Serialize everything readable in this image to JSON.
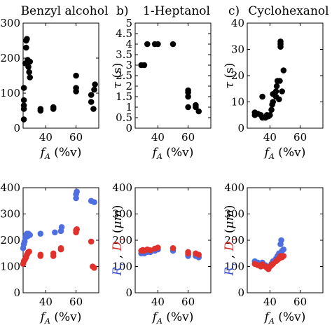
{
  "chart_data": [
    {
      "type": "scatter",
      "title": "Benzyl alcohol",
      "panel_letter": "",
      "xlabel": "f_A (%v)",
      "ylabel": "",
      "xlim": [
        25,
        75
      ],
      "ylim": [
        0,
        300
      ],
      "xticks": [
        40,
        60
      ],
      "yticks": [
        0,
        100,
        200,
        300
      ],
      "series": [
        {
          "color": "#000000",
          "points": [
            [
              25.5,
              25
            ],
            [
              25.5,
              55
            ],
            [
              25.5,
              65
            ],
            [
              25.5,
              80
            ],
            [
              25.5,
              115
            ],
            [
              26.5,
              185
            ],
            [
              27,
              230
            ],
            [
              27,
              250
            ],
            [
              27.5,
              255
            ],
            [
              28,
              195
            ],
            [
              28.5,
              175
            ],
            [
              29,
              160
            ],
            [
              29.5,
              145
            ],
            [
              29.5,
              190
            ],
            [
              36.5,
              50
            ],
            [
              36.5,
              55
            ],
            [
              45,
              55
            ],
            [
              45,
              60
            ],
            [
              60,
              105
            ],
            [
              60,
              115
            ],
            [
              60,
              150
            ],
            [
              70,
              75
            ],
            [
              70,
              95
            ],
            [
              71.5,
              55
            ],
            [
              72,
              110
            ],
            [
              72.5,
              125
            ]
          ]
        }
      ]
    },
    {
      "type": "scatter",
      "title": "1-Heptanol",
      "panel_letter": "b)",
      "xlabel": "f_A (%v)",
      "ylabel": "τ (s)",
      "xlim": [
        25,
        75
      ],
      "ylim": [
        0,
        5
      ],
      "xticks": [
        40,
        60
      ],
      "yticks": [
        0,
        0.5,
        1,
        1.5,
        2,
        2.5,
        3,
        3.5,
        4,
        4.5,
        5
      ],
      "series": [
        {
          "color": "#000000",
          "points": [
            [
              29,
              3
            ],
            [
              31,
              3
            ],
            [
              33,
              4
            ],
            [
              38,
              4
            ],
            [
              40,
              4
            ],
            [
              50,
              4
            ],
            [
              60,
              1
            ],
            [
              60,
              1.5
            ],
            [
              60,
              1.7
            ],
            [
              60,
              1.8
            ],
            [
              65,
              1
            ],
            [
              65,
              1.1
            ],
            [
              67,
              0.8
            ]
          ]
        }
      ]
    },
    {
      "type": "scatter",
      "title": "Cyclohexanol",
      "panel_letter": "c)",
      "xlabel": "f_A (%v)",
      "ylabel": "τ (s)",
      "xlim": [
        25,
        75
      ],
      "ylim": [
        0,
        40
      ],
      "xticks": [
        40,
        60
      ],
      "yticks": [
        0,
        10,
        20,
        30,
        40
      ],
      "series": [
        {
          "color": "#000000",
          "points": [
            [
              30,
              5
            ],
            [
              30,
              6
            ],
            [
              32,
              5.5
            ],
            [
              34,
              5
            ],
            [
              35,
              4
            ],
            [
              35,
              12
            ],
            [
              37,
              4
            ],
            [
              38,
              5
            ],
            [
              39,
              4.5
            ],
            [
              40,
              5
            ],
            [
              41,
              7
            ],
            [
              41.5,
              9
            ],
            [
              42,
              10
            ],
            [
              42,
              13
            ],
            [
              44,
              12
            ],
            [
              44,
              14
            ],
            [
              44.5,
              16
            ],
            [
              45,
              18
            ],
            [
              46,
              11
            ],
            [
              46.5,
              18
            ],
            [
              47,
              31
            ],
            [
              47,
              32
            ],
            [
              47,
              33
            ],
            [
              48,
              14
            ],
            [
              49,
              22
            ]
          ]
        }
      ]
    },
    {
      "type": "scatter",
      "title": "",
      "panel_letter": "",
      "xlabel": "f_A (%v)",
      "ylabel": "",
      "xlim": [
        25,
        75
      ],
      "ylim": [
        0,
        400
      ],
      "xticks": [
        40,
        60
      ],
      "yticks": [
        0,
        100,
        200,
        300,
        400
      ],
      "series": [
        {
          "color": "#4f6ee0",
          "points": [
            [
              25,
              170
            ],
            [
              25.5,
              185
            ],
            [
              26,
              195
            ],
            [
              26.5,
              210
            ],
            [
              27,
              220
            ],
            [
              27.5,
              225
            ],
            [
              28,
              215
            ],
            [
              28.5,
              225
            ],
            [
              29,
              222
            ],
            [
              29.5,
              220
            ],
            [
              36.5,
              225
            ],
            [
              46,
              230
            ],
            [
              50,
              235
            ],
            [
              50.5,
              250
            ],
            [
              60,
              360
            ],
            [
              60,
              375
            ],
            [
              60.5,
              385
            ],
            [
              70,
              350
            ],
            [
              72,
              345
            ]
          ]
        },
        {
          "color": "#e0312c",
          "points": [
            [
              25,
              110
            ],
            [
              25.5,
              120
            ],
            [
              26,
              125
            ],
            [
              26.5,
              130
            ],
            [
              27,
              135
            ],
            [
              27.5,
              145
            ],
            [
              28,
              150
            ],
            [
              28.5,
              155
            ],
            [
              29,
              157
            ],
            [
              36.5,
              140
            ],
            [
              36.5,
              145
            ],
            [
              45,
              140
            ],
            [
              45,
              150
            ],
            [
              50,
              165
            ],
            [
              50,
              170
            ],
            [
              60,
              230
            ],
            [
              60,
              238
            ],
            [
              60.5,
              242
            ],
            [
              70,
              195
            ],
            [
              71,
              100
            ],
            [
              72,
              95
            ]
          ]
        }
      ]
    },
    {
      "type": "scatter",
      "title": "",
      "panel_letter": "",
      "xlabel": "f_A (%v)",
      "ylabel": "R_τ , D_τ (μm)",
      "xlim": [
        25,
        75
      ],
      "ylim": [
        0,
        400
      ],
      "xticks": [
        40,
        60
      ],
      "yticks": [
        0,
        100,
        200,
        300,
        400
      ],
      "series": [
        {
          "color": "#4f6ee0",
          "points": [
            [
              29,
              150
            ],
            [
              30,
              152
            ],
            [
              31,
              150
            ],
            [
              33,
              155
            ],
            [
              35,
              155
            ],
            [
              38,
              160
            ],
            [
              40,
              165
            ],
            [
              50,
              160
            ],
            [
              60,
              140
            ],
            [
              60,
              145
            ],
            [
              65,
              140
            ],
            [
              67,
              135
            ]
          ]
        },
        {
          "color": "#e0312c",
          "points": [
            [
              29,
              160
            ],
            [
              30,
              163
            ],
            [
              31,
              160
            ],
            [
              33,
              165
            ],
            [
              35,
              162
            ],
            [
              38,
              168
            ],
            [
              40,
              172
            ],
            [
              50,
              170
            ],
            [
              60,
              150
            ],
            [
              60,
              155
            ],
            [
              65,
              150
            ],
            [
              67,
              145
            ]
          ]
        }
      ]
    },
    {
      "type": "scatter",
      "title": "",
      "panel_letter": "",
      "xlabel": "f_A (%v)",
      "ylabel": "R_τ , D_τ (μm)",
      "xlim": [
        25,
        75
      ],
      "ylim": [
        0,
        400
      ],
      "xticks": [
        40,
        60
      ],
      "yticks": [
        0,
        100,
        200,
        300,
        400
      ],
      "series": [
        {
          "color": "#4f6ee0",
          "points": [
            [
              30,
              120
            ],
            [
              32,
              115
            ],
            [
              34,
              110
            ],
            [
              35,
              115
            ],
            [
              37,
              105
            ],
            [
              38,
              100
            ],
            [
              39,
              95
            ],
            [
              40,
              100
            ],
            [
              41,
              110
            ],
            [
              42,
              120
            ],
            [
              44,
              130
            ],
            [
              45,
              140
            ],
            [
              46,
              150
            ],
            [
              47,
              185
            ],
            [
              47.5,
              200
            ],
            [
              48,
              160
            ],
            [
              49,
              165
            ]
          ]
        },
        {
          "color": "#e0312c",
          "points": [
            [
              30,
              110
            ],
            [
              32,
              105
            ],
            [
              34,
              100
            ],
            [
              35,
              108
            ],
            [
              37,
              100
            ],
            [
              38,
              95
            ],
            [
              39,
              90
            ],
            [
              40,
              100
            ],
            [
              41,
              105
            ],
            [
              42,
              110
            ],
            [
              44,
              120
            ],
            [
              45,
              125
            ],
            [
              46,
              130
            ],
            [
              47,
              140
            ],
            [
              48,
              135
            ],
            [
              49,
              140
            ]
          ]
        }
      ]
    }
  ]
}
